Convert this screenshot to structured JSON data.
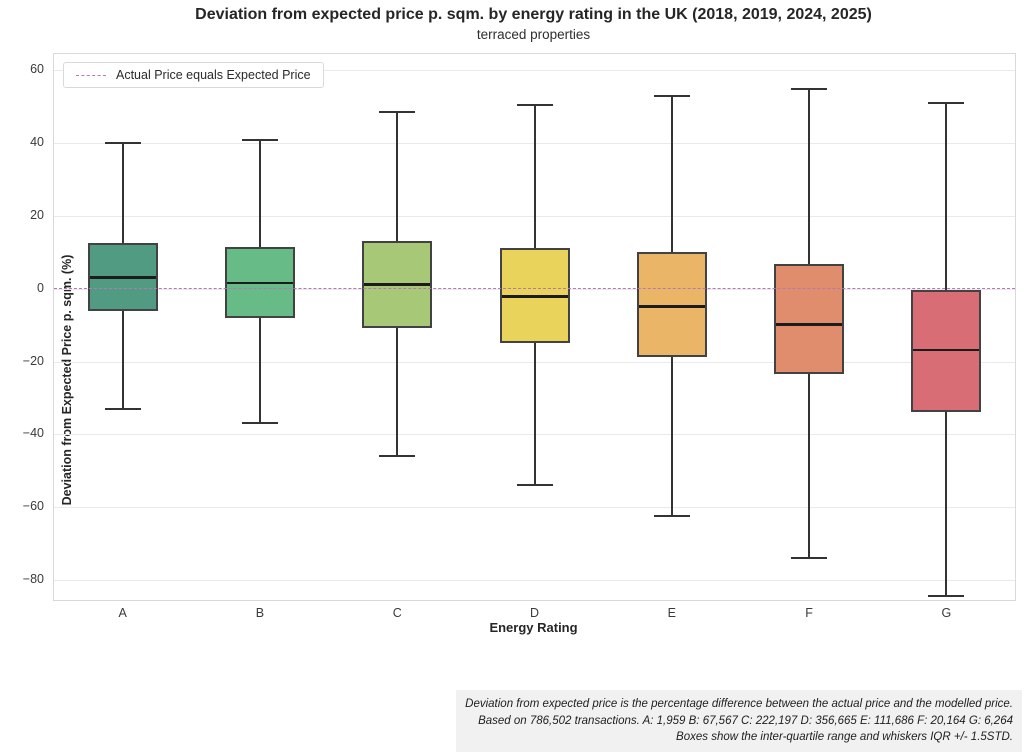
{
  "title": "Deviation from expected price p. sqm. by energy rating in the UK (2018, 2019, 2024, 2025)",
  "subtitle": "terraced properties",
  "legend": {
    "label": "Actual Price equals Expected Price"
  },
  "footnote_lines": [
    "Deviation from expected price is the percentage difference between the actual price and the modelled price.",
    "Based on 786,502 transactions. A: 1,959 B: 67,567 C: 222,197 D: 356,665 E: 111,686 F: 20,164 G: 6,264",
    "Boxes show the inter-quartile range and whiskers IQR +/- 1.5STD."
  ],
  "colors": {
    "zero_line": "#b578b5",
    "box_edge": "#424242",
    "whisker": "#333333",
    "grid": "#eaeaea"
  },
  "chart_data": {
    "type": "boxplot",
    "title": "Deviation from expected price p. sqm. by energy rating in the UK (2018, 2019, 2024, 2025)",
    "subtitle": "terraced properties",
    "xlabel": "Energy Rating",
    "ylabel": "Deviation from Expected Price p. sqm. (%)",
    "categories": [
      "A",
      "B",
      "C",
      "D",
      "E",
      "F",
      "G"
    ],
    "series": [
      {
        "category": "A",
        "whisker_low": -33,
        "q1": -6,
        "median": 3.2,
        "q3": 12.5,
        "whisker_high": 40,
        "color": "#509b81"
      },
      {
        "category": "B",
        "whisker_low": -37,
        "q1": -8,
        "median": 1.6,
        "q3": 11.5,
        "whisker_high": 41,
        "color": "#66bb87"
      },
      {
        "category": "C",
        "whisker_low": -46,
        "q1": -10.7,
        "median": 1.2,
        "q3": 13,
        "whisker_high": 48.5,
        "color": "#a7c876"
      },
      {
        "category": "D",
        "whisker_low": -54,
        "q1": -14.8,
        "median": -2,
        "q3": 11.2,
        "whisker_high": 50.5,
        "color": "#e9d35b"
      },
      {
        "category": "E",
        "whisker_low": -62.5,
        "q1": -18.8,
        "median": -4.8,
        "q3": 10,
        "whisker_high": 53,
        "color": "#eab566"
      },
      {
        "category": "F",
        "whisker_low": -74,
        "q1": -23.5,
        "median": -9.7,
        "q3": 6.7,
        "whisker_high": 55,
        "color": "#e08d6e"
      },
      {
        "category": "G",
        "whisker_low": -84.5,
        "q1": -33.8,
        "median": -16.8,
        "q3": -0.4,
        "whisker_high": 51,
        "color": "#d96d76"
      }
    ],
    "ylim": [
      -85.5,
      64.5
    ],
    "yticks": [
      60,
      40,
      20,
      0,
      -20,
      -40,
      -60,
      -80
    ],
    "zero_line": 0,
    "grid": true,
    "legend_position": "upper-left",
    "legend_label": "Actual Price equals Expected Price"
  }
}
